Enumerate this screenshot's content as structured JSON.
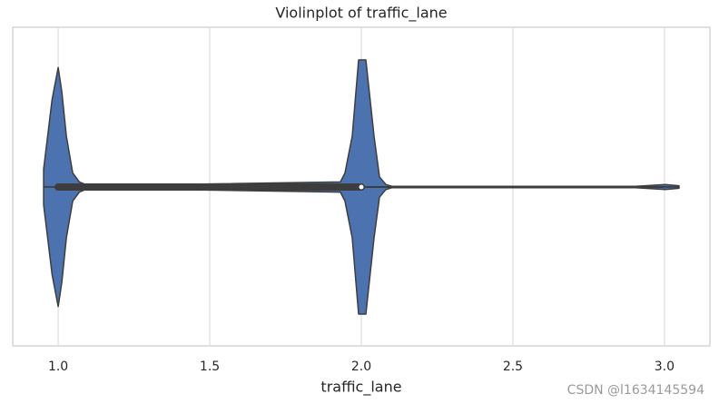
{
  "chart_data": {
    "type": "violin",
    "title": "Violinplot of traffic_lane",
    "xlabel": "traffic_lane",
    "xlim": [
      0.85,
      3.15
    ],
    "xticks": [
      {
        "value": 1,
        "label": "1.0"
      },
      {
        "value": 1.5,
        "label": "1.5"
      },
      {
        "value": 2,
        "label": "2.0"
      },
      {
        "value": 2.5,
        "label": "2.5"
      },
      {
        "value": 3,
        "label": "3.0"
      }
    ],
    "grid": true,
    "color": "#4c72b0",
    "density": {
      "x": [
        0.952,
        0.98,
        1.0,
        1.012,
        1.027,
        1.048,
        1.07,
        1.1,
        1.931,
        1.946,
        1.97,
        1.991,
        2.015,
        2.042,
        2.06,
        2.081,
        2.102,
        2.904,
        3.003,
        3.048
      ],
      "width": [
        0.14,
        0.69,
        0.94,
        0.75,
        0.4,
        0.11,
        0.04,
        0.01,
        0.04,
        0.11,
        0.4,
        1.0,
        1.0,
        0.4,
        0.08,
        0.02,
        0.005,
        0.005,
        0.02,
        0.01
      ]
    },
    "box": {
      "whisker_low": 1,
      "q1": 1,
      "median": 2,
      "q3": 2,
      "whisker_high": 3
    },
    "watermark": "CSDN @l1634145594"
  }
}
